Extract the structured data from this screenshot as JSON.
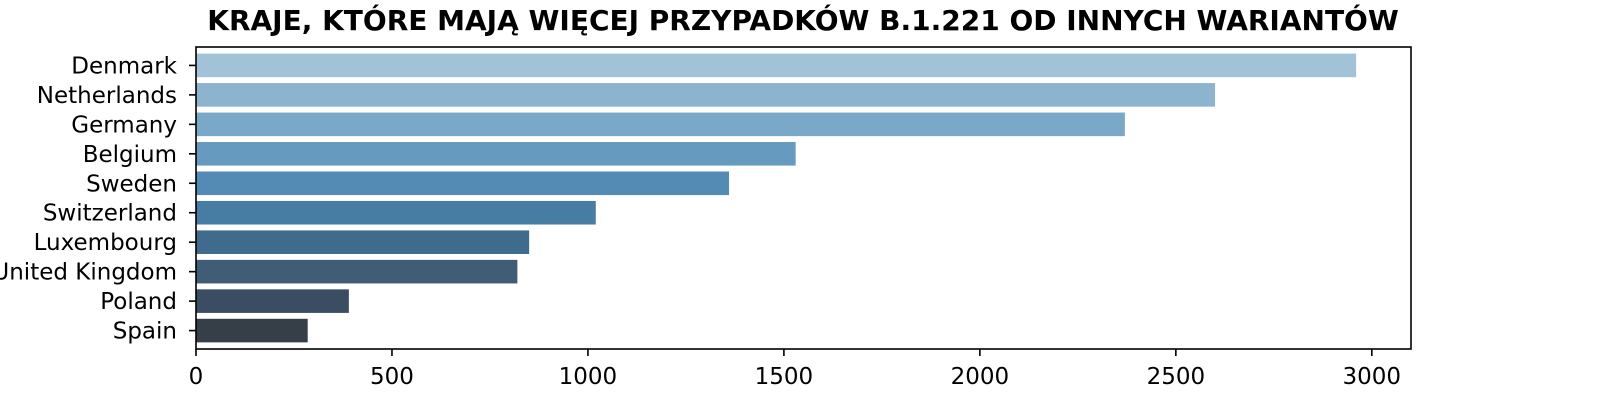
{
  "chart_data": {
    "type": "bar",
    "orientation": "horizontal",
    "title": "KRAJE, KTÓRE MAJĄ WIĘCEJ PRZYPADKÓW B.1.221 OD INNYCH WARIANTÓW",
    "xlabel": "",
    "ylabel": "",
    "categories": [
      "Denmark",
      "Netherlands",
      "Germany",
      "Belgium",
      "Sweden",
      "Switzerland",
      "Luxembourg",
      "United Kingdom",
      "Poland",
      "Spain"
    ],
    "values": [
      2960,
      2600,
      2370,
      1530,
      1360,
      1020,
      850,
      820,
      390,
      285
    ],
    "colors": [
      "#a2c2d8",
      "#8db4cf",
      "#79a8c8",
      "#669abf",
      "#548bb5",
      "#477ca3",
      "#3f6c8d",
      "#405d75",
      "#3b4d62",
      "#363f48"
    ],
    "xlim": [
      0,
      3100
    ],
    "xticks": [
      0,
      500,
      1000,
      1500,
      2000,
      2500,
      3000
    ],
    "grid": false,
    "legend": "none"
  }
}
